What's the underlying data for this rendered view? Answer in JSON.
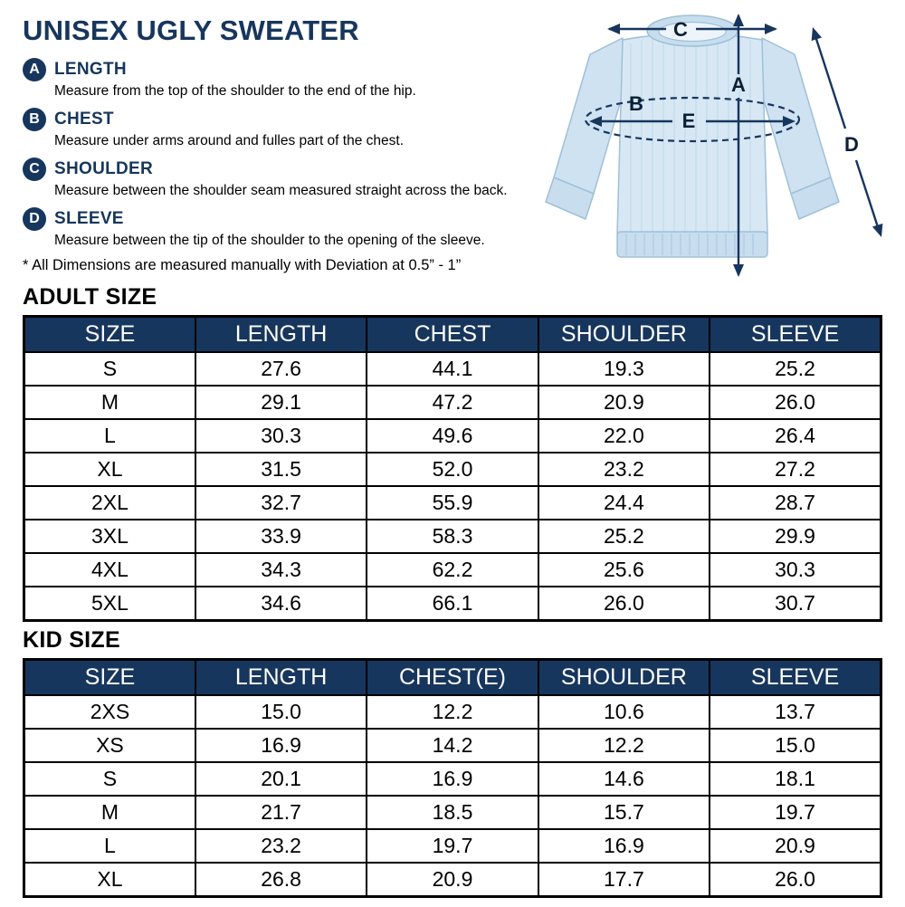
{
  "title": "UNISEX UGLY SWEATER",
  "measurements": [
    {
      "key": "A",
      "label": "LENGTH",
      "description": "Measure from the top of the shoulder to the end of the hip."
    },
    {
      "key": "B",
      "label": "CHEST",
      "description": "Measure under arms around and fulles part of the chest."
    },
    {
      "key": "C",
      "label": "SHOULDER",
      "description": "Measure between the shoulder seam measured straight across the back."
    },
    {
      "key": "D",
      "label": "SLEEVE",
      "description": "Measure between the tip of the shoulder to the opening of the sleeve."
    }
  ],
  "note": "* All Dimensions are measured manually with Deviation at 0.5” - 1”",
  "diagram_labels": {
    "a": "A",
    "b": "B",
    "c": "C",
    "d": "D",
    "e": "E"
  },
  "adult": {
    "heading": "ADULT SIZE",
    "columns": [
      "SIZE",
      "LENGTH",
      "CHEST",
      "SHOULDER",
      "SLEEVE"
    ],
    "rows": [
      [
        "S",
        "27.6",
        "44.1",
        "19.3",
        "25.2"
      ],
      [
        "M",
        "29.1",
        "47.2",
        "20.9",
        "26.0"
      ],
      [
        "L",
        "30.3",
        "49.6",
        "22.0",
        "26.4"
      ],
      [
        "XL",
        "31.5",
        "52.0",
        "23.2",
        "27.2"
      ],
      [
        "2XL",
        "32.7",
        "55.9",
        "24.4",
        "28.7"
      ],
      [
        "3XL",
        "33.9",
        "58.3",
        "25.2",
        "29.9"
      ],
      [
        "4XL",
        "34.3",
        "62.2",
        "25.6",
        "30.3"
      ],
      [
        "5XL",
        "34.6",
        "66.1",
        "26.0",
        "30.7"
      ]
    ]
  },
  "kid": {
    "heading": "KID SIZE",
    "columns": [
      "SIZE",
      "LENGTH",
      "CHEST(E)",
      "SHOULDER",
      "SLEEVE"
    ],
    "rows": [
      [
        "2XS",
        "15.0",
        "12.2",
        "10.6",
        "13.7"
      ],
      [
        "XS",
        "16.9",
        "14.2",
        "12.2",
        "15.0"
      ],
      [
        "S",
        "20.1",
        "16.9",
        "14.6",
        "18.1"
      ],
      [
        "M",
        "21.7",
        "18.5",
        "15.7",
        "19.7"
      ],
      [
        "L",
        "23.2",
        "19.7",
        "16.9",
        "20.9"
      ],
      [
        "XL",
        "26.8",
        "20.9",
        "17.7",
        "26.0"
      ]
    ]
  },
  "colors": {
    "navy": "#17365d",
    "sweater_light_blue": "#d7e8f4",
    "table_border_black": "#000000",
    "header_text_white": "#ffffff"
  }
}
